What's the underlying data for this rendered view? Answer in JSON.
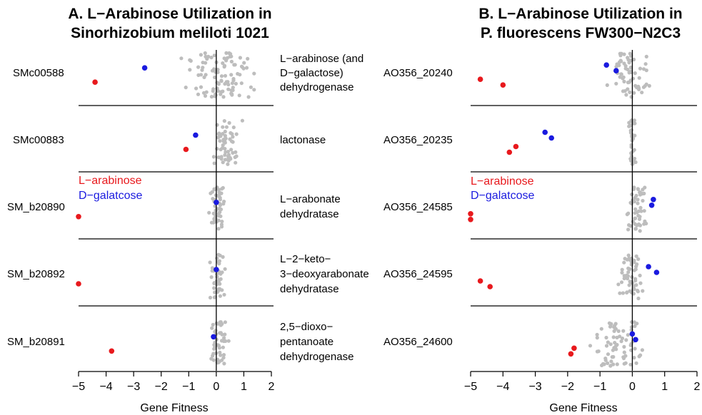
{
  "chart_data": [
    {
      "type": "scatter",
      "title_lines": [
        "A. L−Arabinose Utilization in",
        "Sinorhizobium meliloti 1021"
      ],
      "xlabel": "Gene Fitness",
      "xlim": [
        -5,
        2
      ],
      "x_ticks": [
        "−5",
        "−4",
        "−3",
        "−2",
        "−1",
        "0",
        "1",
        "2"
      ],
      "legend": [
        {
          "label": "L−arabinose",
          "color": "#e8191d"
        },
        {
          "label": "D−galatcose",
          "color": "#1a1adf"
        }
      ],
      "rows": [
        {
          "gene": "SMc00588",
          "description": [
            "L−arabinose (and",
            "D−galactose)",
            "dehydrogenase"
          ],
          "points": [
            {
              "x": -4.4,
              "series": "L-arabinose"
            },
            {
              "x": -2.6,
              "series": "D-galactose"
            }
          ],
          "background_range": [
            -1.7,
            2.0
          ]
        },
        {
          "gene": "SMc00883",
          "description": [
            "lactonase"
          ],
          "points": [
            {
              "x": -1.1,
              "series": "L-arabinose"
            },
            {
              "x": -0.75,
              "series": "D-galactose"
            }
          ],
          "background_range": [
            -0.3,
            1.0
          ]
        },
        {
          "gene": "SM_b20890",
          "description": [
            "L−arabonate",
            "dehydratase"
          ],
          "points": [
            {
              "x": -5.0,
              "series": "L-arabinose"
            },
            {
              "x": 0.0,
              "series": "D-galactose"
            }
          ],
          "background_range": [
            -0.3,
            0.4
          ]
        },
        {
          "gene": "SM_b20892",
          "description": [
            "L−2−keto−",
            "3−deoxyarabonate",
            "dehydratase"
          ],
          "points": [
            {
              "x": -5.0,
              "series": "L-arabinose"
            },
            {
              "x": 0.0,
              "series": "D-galactose"
            }
          ],
          "background_range": [
            -0.3,
            0.4
          ]
        },
        {
          "gene": "SM_b20891",
          "description": [
            "2,5−dioxo−",
            "pentanoate",
            "dehydrogenase"
          ],
          "points": [
            {
              "x": -3.8,
              "series": "L-arabinose"
            },
            {
              "x": -0.1,
              "series": "D-galactose"
            }
          ],
          "background_range": [
            -0.3,
            0.5
          ]
        }
      ]
    },
    {
      "type": "scatter",
      "title_lines": [
        "B. L−Arabinose Utilization in",
        "P. fluorescens FW300−N2C3"
      ],
      "xlabel": "Gene Fitness",
      "xlim": [
        -5,
        2
      ],
      "x_ticks": [
        "−5",
        "−4",
        "−3",
        "−2",
        "−1",
        "0",
        "1",
        "2"
      ],
      "legend": [
        {
          "label": "L−arabinose",
          "color": "#e8191d"
        },
        {
          "label": "D−galatcose",
          "color": "#1a1adf"
        }
      ],
      "rows": [
        {
          "gene": "AO356_20240",
          "points": [
            {
              "x": -4.7,
              "series": "L-arabinose"
            },
            {
              "x": -4.0,
              "series": "L-arabinose"
            },
            {
              "x": -0.8,
              "series": "D-galactose"
            },
            {
              "x": -0.5,
              "series": "D-galactose"
            }
          ],
          "background_range": [
            -0.9,
            0.7
          ]
        },
        {
          "gene": "AO356_20235",
          "points": [
            {
              "x": -3.6,
              "series": "L-arabinose"
            },
            {
              "x": -3.8,
              "series": "L-arabinose"
            },
            {
              "x": -2.7,
              "series": "D-galactose"
            },
            {
              "x": -2.5,
              "series": "D-galactose"
            }
          ],
          "background_range": [
            -0.15,
            0.15
          ]
        },
        {
          "gene": "AO356_24585",
          "points": [
            {
              "x": -5.0,
              "series": "L-arabinose"
            },
            {
              "x": -5.0,
              "series": "L-arabinose"
            },
            {
              "x": 0.65,
              "series": "D-galactose"
            },
            {
              "x": 0.6,
              "series": "D-galactose"
            }
          ],
          "background_range": [
            -0.3,
            0.6
          ]
        },
        {
          "gene": "AO356_24595",
          "points": [
            {
              "x": -4.7,
              "series": "L-arabinose"
            },
            {
              "x": -4.4,
              "series": "L-arabinose"
            },
            {
              "x": 0.5,
              "series": "D-galactose"
            },
            {
              "x": 0.75,
              "series": "D-galactose"
            }
          ],
          "background_range": [
            -0.6,
            0.5
          ]
        },
        {
          "gene": "AO356_24600",
          "points": [
            {
              "x": -1.8,
              "series": "L-arabinose"
            },
            {
              "x": -1.9,
              "series": "L-arabinose"
            },
            {
              "x": 0.0,
              "series": "D-galactose"
            },
            {
              "x": 0.1,
              "series": "D-galactose"
            }
          ],
          "background_range": [
            -1.5,
            0.6
          ]
        }
      ]
    }
  ],
  "colors": {
    "l_arabinose": "#e8191d",
    "d_galactose": "#1a1adf",
    "background_gene": "#bdbdbd"
  }
}
